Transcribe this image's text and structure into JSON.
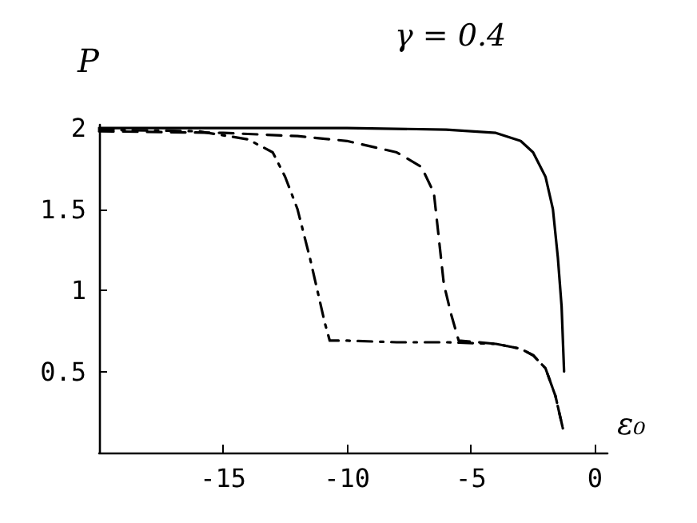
{
  "chart_data": {
    "type": "line",
    "title": "γ = 0.4",
    "ylabel": "P",
    "xlabel": "ε₀",
    "xlim": [
      -20,
      0.5
    ],
    "xticks": [
      -15,
      -10,
      -5,
      0
    ],
    "ylim": [
      0,
      2.02
    ],
    "yticks": [
      0.5,
      1,
      1.5,
      2
    ],
    "series": [
      {
        "color": "#000000",
        "line_style": "solid",
        "x": [
          -20,
          -10,
          -6,
          -4,
          -3,
          -2.5,
          -2,
          -1.7,
          -1.5,
          -1.35,
          -1.25
        ],
        "values": [
          2,
          2,
          1.99,
          1.97,
          1.92,
          1.85,
          1.7,
          1.5,
          1.2,
          0.9,
          0.5
        ]
      },
      {
        "color": "#000000",
        "line_style": "dashed",
        "x": [
          -20,
          -15,
          -12,
          -10,
          -8,
          -7,
          -6.5,
          -6.1,
          -5.8,
          -5.5,
          -4,
          -3,
          -2.5,
          -2,
          -1.6,
          -1.3
        ],
        "values": [
          1.98,
          1.97,
          1.95,
          1.92,
          1.85,
          1.76,
          1.6,
          1.04,
          0.85,
          0.69,
          0.67,
          0.64,
          0.6,
          0.52,
          0.35,
          0.15
        ]
      },
      {
        "color": "#000000",
        "line_style": "dashdot",
        "x": [
          -20,
          -16,
          -14,
          -13,
          -12.5,
          -12,
          -11.5,
          -11.2,
          -10.9,
          -10.7,
          -10,
          -8,
          -6,
          -4,
          -3,
          -2.5,
          -2,
          -1.6,
          -1.3
        ],
        "values": [
          1.99,
          1.98,
          1.93,
          1.85,
          1.7,
          1.5,
          1.2,
          1.0,
          0.8,
          0.69,
          0.69,
          0.68,
          0.68,
          0.67,
          0.64,
          0.6,
          0.52,
          0.35,
          0.15
        ]
      }
    ]
  }
}
